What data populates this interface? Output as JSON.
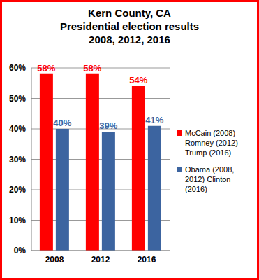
{
  "chart_data": {
    "type": "bar",
    "title": "Kern County, CA\nPresidential election results\n2008, 2012, 2016",
    "categories": [
      "2008",
      "2012",
      "2016"
    ],
    "series": [
      {
        "name": "McCain (2008) Romney (2012) Trump (2016)",
        "color": "#ff0000",
        "values": [
          58,
          58,
          54
        ],
        "value_labels": [
          "58%",
          "58%",
          "54%"
        ]
      },
      {
        "name": "Obama (2008, 2012) Clinton (2016)",
        "color": "#3c64a0",
        "values": [
          40,
          39,
          41
        ],
        "value_labels": [
          "40%",
          "39%",
          "41%"
        ]
      }
    ],
    "ylim": [
      0,
      60
    ],
    "yticks": [
      {
        "value": 0,
        "label": "0%"
      },
      {
        "value": 10,
        "label": "10%"
      },
      {
        "value": 20,
        "label": "20%"
      },
      {
        "value": 30,
        "label": "30%"
      },
      {
        "value": 40,
        "label": "40%"
      },
      {
        "value": 50,
        "label": "50%"
      },
      {
        "value": 60,
        "label": "60%"
      }
    ],
    "grid": true,
    "legend": "right",
    "data_labels": true
  }
}
